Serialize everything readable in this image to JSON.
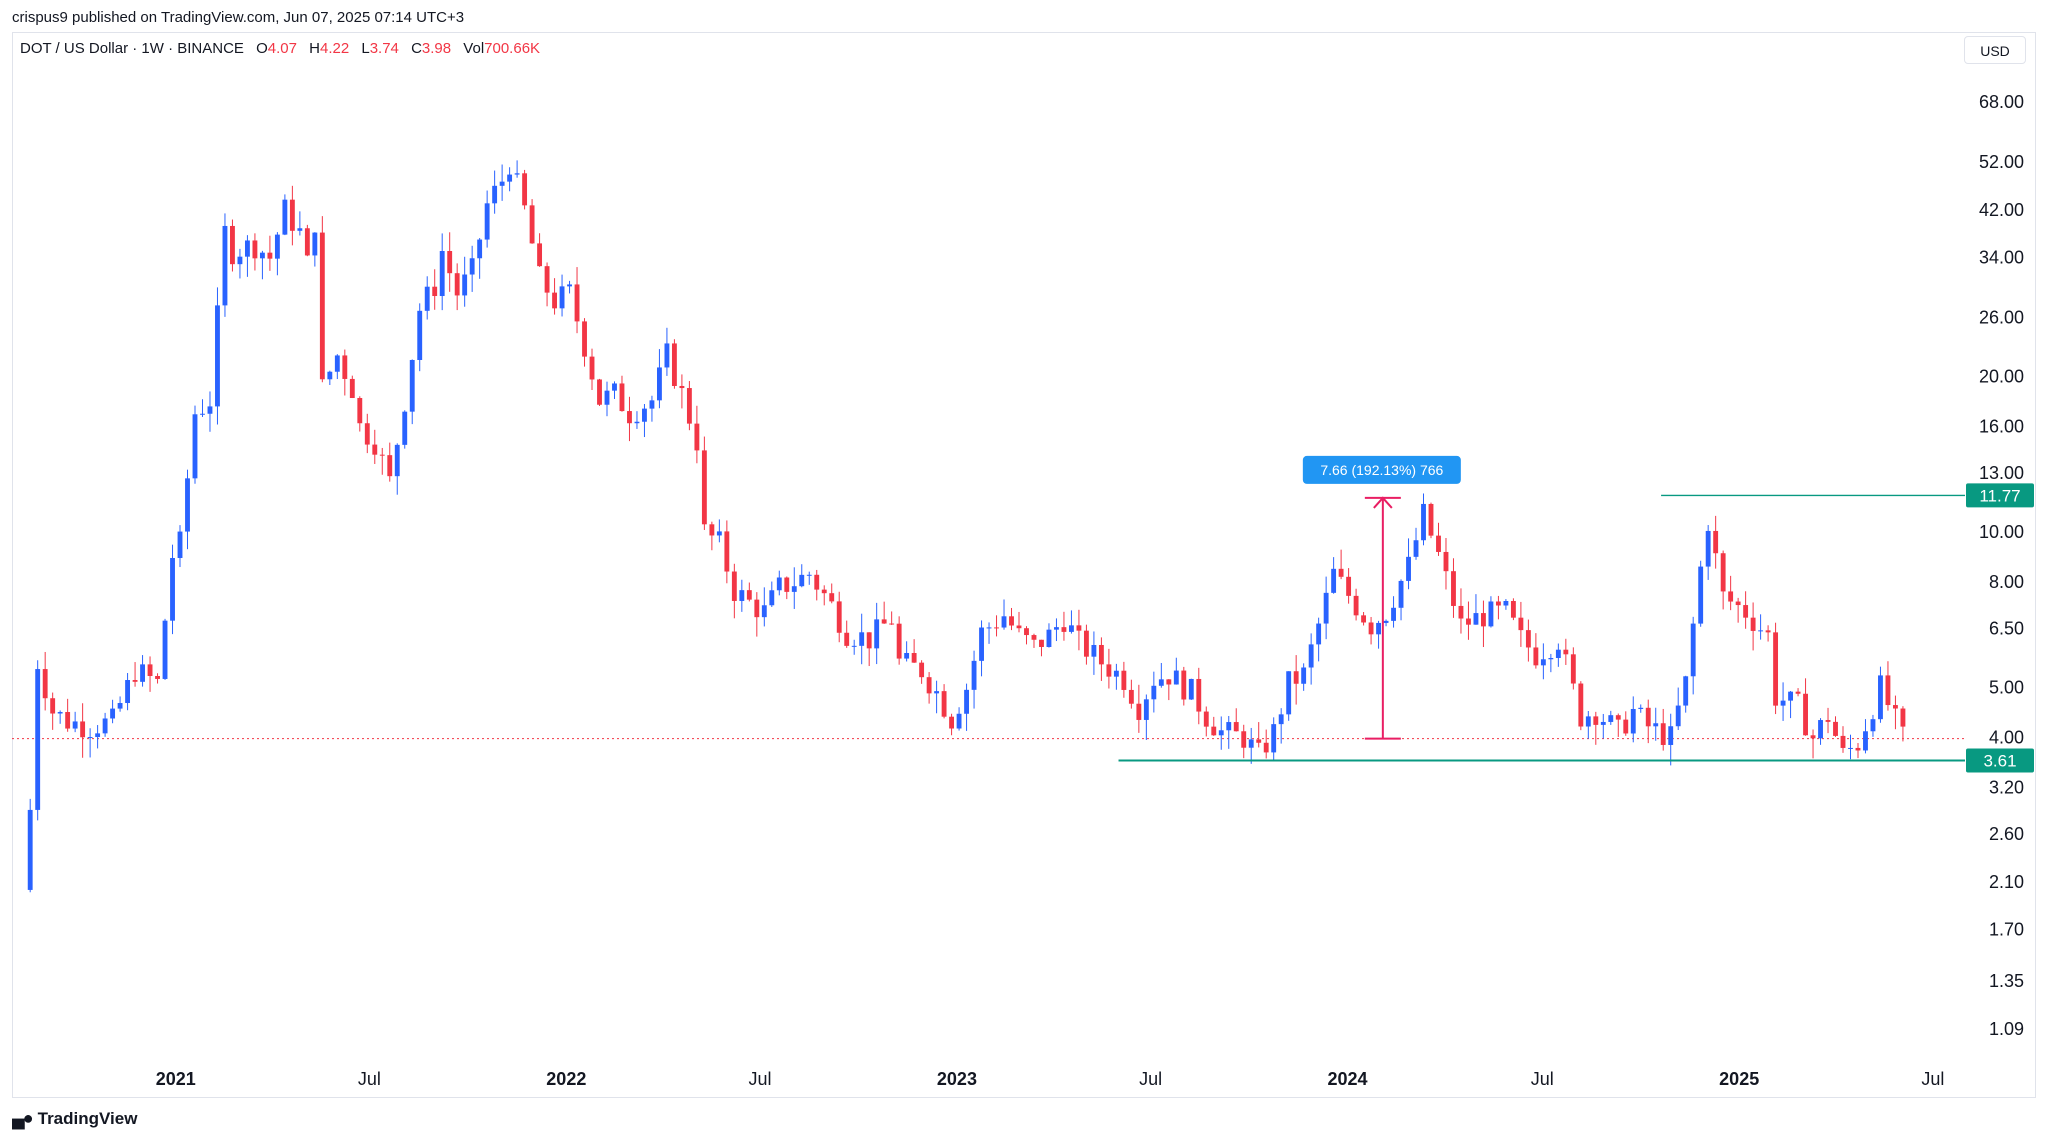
{
  "header": {
    "published_by": "crispus9 published on TradingView.com, Jun 07, 2025 07:14 UTC+3"
  },
  "legend": {
    "symbol": "DOT / US Dollar · 1W · BINANCE",
    "open_label": "O",
    "open": "4.07",
    "high_label": "H",
    "high": "4.22",
    "low_label": "L",
    "low": "3.74",
    "close_label": "C",
    "close": "3.98",
    "vol_label": "Vol",
    "vol": "700.66K"
  },
  "currency": "USD",
  "footer": {
    "brand": "TradingView"
  },
  "colors": {
    "up": "#2962ff",
    "down": "#f23645",
    "level": "#089981",
    "measure": "#e91e63",
    "measure_label": "#2196f3"
  },
  "chart_data": {
    "type": "candlestick",
    "scale": "log",
    "interval": "1W",
    "ylim": [
      0.95,
      82
    ],
    "x_range": [
      "2020-08-01",
      "2025-07-31"
    ],
    "y_ticks": [
      "68.00",
      "52.00",
      "42.00",
      "34.00",
      "26.00",
      "20.00",
      "16.00",
      "13.00",
      "10.00",
      "8.00",
      "6.50",
      "5.00",
      "4.00",
      "3.20",
      "2.60",
      "2.10",
      "1.70",
      "1.35",
      "1.09"
    ],
    "x_ticks": [
      {
        "label": "2021",
        "date": "2021-01-01",
        "bold": true
      },
      {
        "label": "Jul",
        "date": "2021-07-01",
        "bold": false
      },
      {
        "label": "2022",
        "date": "2022-01-01",
        "bold": true
      },
      {
        "label": "Jul",
        "date": "2022-07-01",
        "bold": false
      },
      {
        "label": "2023",
        "date": "2023-01-01",
        "bold": true
      },
      {
        "label": "Jul",
        "date": "2023-07-01",
        "bold": false
      },
      {
        "label": "2024",
        "date": "2024-01-01",
        "bold": true
      },
      {
        "label": "Jul",
        "date": "2024-07-01",
        "bold": false
      },
      {
        "label": "2025",
        "date": "2025-01-01",
        "bold": true
      },
      {
        "label": "Jul",
        "date": "2025-07-01",
        "bold": false
      }
    ],
    "price_path": [
      [
        "2020-08-18",
        2.9
      ],
      [
        "2020-08-25",
        5.6
      ],
      [
        "2020-09-08",
        4.5
      ],
      [
        "2020-09-22",
        4.3
      ],
      [
        "2020-10-13",
        4.2
      ],
      [
        "2020-11-03",
        4.3
      ],
      [
        "2020-11-24",
        5.4
      ],
      [
        "2020-12-15",
        5.1
      ],
      [
        "2020-12-29",
        9.0
      ],
      [
        "2021-01-05",
        9.5
      ],
      [
        "2021-01-19",
        17.0
      ],
      [
        "2021-02-02",
        18.0
      ],
      [
        "2021-02-09",
        26.0
      ],
      [
        "2021-02-16",
        38.0
      ],
      [
        "2021-02-23",
        35.0
      ],
      [
        "2021-03-16",
        36.0
      ],
      [
        "2021-03-30",
        34.0
      ],
      [
        "2021-04-13",
        42.0
      ],
      [
        "2021-04-27",
        38.0
      ],
      [
        "2021-05-04",
        33.0
      ],
      [
        "2021-05-11",
        40.0
      ],
      [
        "2021-05-18",
        19.0
      ],
      [
        "2021-06-01",
        22.0
      ],
      [
        "2021-06-15",
        19.0
      ],
      [
        "2021-06-22",
        16.0
      ],
      [
        "2021-07-06",
        15.0
      ],
      [
        "2021-07-20",
        12.5
      ],
      [
        "2021-08-03",
        18.0
      ],
      [
        "2021-08-17",
        27.0
      ],
      [
        "2021-08-31",
        30.0
      ],
      [
        "2021-09-07",
        35.0
      ],
      [
        "2021-09-21",
        29.0
      ],
      [
        "2021-10-05",
        32.0
      ],
      [
        "2021-10-19",
        43.0
      ],
      [
        "2021-11-02",
        48.0
      ],
      [
        "2021-11-09",
        52.0
      ],
      [
        "2021-11-23",
        42.0
      ],
      [
        "2021-12-07",
        31.0
      ],
      [
        "2021-12-21",
        28.0
      ],
      [
        "2022-01-04",
        29.0
      ],
      [
        "2022-01-18",
        23.0
      ],
      [
        "2022-02-01",
        18.0
      ],
      [
        "2022-02-15",
        18.5
      ],
      [
        "2022-03-01",
        17.0
      ],
      [
        "2022-03-22",
        18.0
      ],
      [
        "2022-04-05",
        22.0
      ],
      [
        "2022-04-19",
        18.5
      ],
      [
        "2022-05-03",
        15.0
      ],
      [
        "2022-05-10",
        10.0
      ],
      [
        "2022-05-24",
        9.5
      ],
      [
        "2022-06-07",
        7.7
      ],
      [
        "2022-06-21",
        7.3
      ],
      [
        "2022-07-05",
        7.0
      ],
      [
        "2022-07-19",
        7.8
      ],
      [
        "2022-08-02",
        8.0
      ],
      [
        "2022-08-16",
        8.3
      ],
      [
        "2022-09-06",
        7.2
      ],
      [
        "2022-09-20",
        6.4
      ],
      [
        "2022-10-11",
        6.2
      ],
      [
        "2022-11-01",
        6.8
      ],
      [
        "2022-11-08",
        5.6
      ],
      [
        "2022-11-29",
        5.4
      ],
      [
        "2022-12-13",
        4.9
      ],
      [
        "2022-12-27",
        4.35
      ],
      [
        "2023-01-10",
        5.0
      ],
      [
        "2023-01-24",
        6.4
      ],
      [
        "2023-02-14",
        6.9
      ],
      [
        "2023-02-28",
        6.3
      ],
      [
        "2023-03-14",
        6.0
      ],
      [
        "2023-03-28",
        6.3
      ],
      [
        "2023-04-11",
        6.8
      ],
      [
        "2023-04-25",
        6.1
      ],
      [
        "2023-05-16",
        5.6
      ],
      [
        "2023-06-06",
        5.2
      ],
      [
        "2023-06-20",
        4.6
      ],
      [
        "2023-07-04",
        5.2
      ],
      [
        "2023-07-18",
        5.3
      ],
      [
        "2023-08-08",
        4.9
      ],
      [
        "2023-08-22",
        4.4
      ],
      [
        "2023-09-05",
        4.1
      ],
      [
        "2023-09-26",
        4.0
      ],
      [
        "2023-10-10",
        3.7
      ],
      [
        "2023-10-24",
        4.1
      ],
      [
        "2023-11-07",
        5.1
      ],
      [
        "2023-11-21",
        5.3
      ],
      [
        "2023-12-05",
        6.6
      ],
      [
        "2023-12-19",
        8.3
      ],
      [
        "2024-01-09",
        7.2
      ],
      [
        "2024-01-23",
        6.6
      ],
      [
        "2024-02-06",
        7.0
      ],
      [
        "2024-02-27",
        8.6
      ],
      [
        "2024-03-12",
        10.8
      ],
      [
        "2024-03-26",
        9.0
      ],
      [
        "2024-04-16",
        6.6
      ],
      [
        "2024-05-07",
        6.9
      ],
      [
        "2024-05-28",
        7.0
      ],
      [
        "2024-06-11",
        6.2
      ],
      [
        "2024-06-25",
        5.8
      ],
      [
        "2024-07-16",
        6.2
      ],
      [
        "2024-08-06",
        4.4
      ],
      [
        "2024-08-20",
        4.5
      ],
      [
        "2024-09-10",
        4.1
      ],
      [
        "2024-09-24",
        4.5
      ],
      [
        "2024-10-08",
        4.2
      ],
      [
        "2024-10-29",
        4.0
      ],
      [
        "2024-11-12",
        5.1
      ],
      [
        "2024-11-26",
        8.5
      ],
      [
        "2024-12-03",
        10.5
      ],
      [
        "2024-12-17",
        7.5
      ],
      [
        "2025-01-07",
        7.0
      ],
      [
        "2025-01-28",
        6.3
      ],
      [
        "2025-02-04",
        4.8
      ],
      [
        "2025-02-25",
        4.6
      ],
      [
        "2025-03-11",
        4.0
      ],
      [
        "2025-03-25",
        4.4
      ],
      [
        "2025-04-08",
        3.7
      ],
      [
        "2025-04-22",
        3.9
      ],
      [
        "2025-05-13",
        5.0
      ],
      [
        "2025-05-27",
        4.3
      ],
      [
        "2025-06-03",
        4.0
      ]
    ],
    "levels": [
      {
        "value": 11.77,
        "label": "11.77",
        "from": "2024-10-20"
      },
      {
        "value": 3.61,
        "label": "3.61",
        "from": "2023-06-01"
      }
    ],
    "last_price": 3.98,
    "measure": {
      "date": "2024-02-03",
      "from": 3.98,
      "to": 11.64,
      "label": "7.66 (192.13%) 766"
    }
  }
}
